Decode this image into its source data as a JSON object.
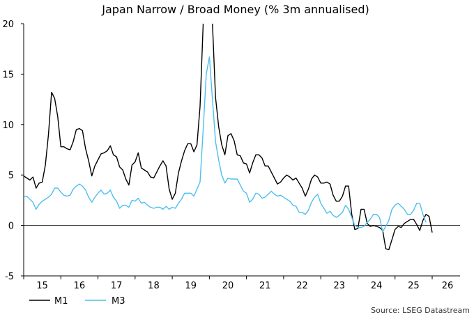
{
  "chart_data": {
    "type": "line",
    "title": "Japan Narrow / Broad Money (% 3m annualised)",
    "source": "Source: LSEG Datastream",
    "x_start": "2014-07",
    "frequency": "monthly",
    "ylim": [
      -5,
      20
    ],
    "yticks": [
      "-5",
      "0",
      "5",
      "10",
      "15",
      "20"
    ],
    "xticks": [
      "15",
      "16",
      "17",
      "18",
      "19",
      "20",
      "21",
      "22",
      "23",
      "24",
      "25",
      "26"
    ],
    "grid": false,
    "legend_position": "bottom-left",
    "series": [
      {
        "name": "M1",
        "color": "#000000",
        "values": [
          7.2,
          5.6,
          4.8,
          4.1,
          4.7,
          4.4,
          4.9,
          4.7,
          4.5,
          4.8,
          3.7,
          4.2,
          4.3,
          6.0,
          9.0,
          13.2,
          12.6,
          10.8,
          7.8,
          7.8,
          7.6,
          7.5,
          8.3,
          9.5,
          9.6,
          9.4,
          7.6,
          6.4,
          4.9,
          5.9,
          6.5,
          7.1,
          7.2,
          7.4,
          7.9,
          7.0,
          6.8,
          5.8,
          5.5,
          4.6,
          4.0,
          6.0,
          6.3,
          7.2,
          5.7,
          5.5,
          5.3,
          4.8,
          4.7,
          5.3,
          5.9,
          6.4,
          5.9,
          3.6,
          2.6,
          3.2,
          5.2,
          6.4,
          7.4,
          8.1,
          8.1,
          7.3,
          8.0,
          11.8,
          20.0,
          24.0,
          24.0,
          20.0,
          12.7,
          9.8,
          8.0,
          7.0,
          8.9,
          9.1,
          8.4,
          7.0,
          6.9,
          6.2,
          6.1,
          5.2,
          6.2,
          7.0,
          7.0,
          6.7,
          5.9,
          5.9,
          5.3,
          4.7,
          4.1,
          4.3,
          4.7,
          5.0,
          4.8,
          4.5,
          4.7,
          4.2,
          3.7,
          2.9,
          3.6,
          4.6,
          5.0,
          4.8,
          4.2,
          4.2,
          4.3,
          4.1,
          3.0,
          2.4,
          2.4,
          2.9,
          3.9,
          3.9,
          1.1,
          -0.4,
          -0.3,
          1.6,
          1.6,
          0.2,
          -0.1,
          0.0,
          -0.1,
          -0.2,
          -0.5,
          -2.3,
          -2.4,
          -1.4,
          -0.4,
          -0.1,
          -0.2,
          0.2,
          0.4,
          0.6,
          0.6,
          0.1,
          -0.5,
          0.5,
          1.1,
          0.9,
          -0.7
        ]
      },
      {
        "name": "M3",
        "color": "#4dbfef",
        "values": [
          4.2,
          3.0,
          2.7,
          2.5,
          2.9,
          2.5,
          2.8,
          2.9,
          2.6,
          2.3,
          1.6,
          2.1,
          2.4,
          2.6,
          2.8,
          3.1,
          3.7,
          3.7,
          3.3,
          3.0,
          2.9,
          3.0,
          3.6,
          3.9,
          4.1,
          3.9,
          3.5,
          2.8,
          2.3,
          2.8,
          3.2,
          3.5,
          3.1,
          3.2,
          3.5,
          2.8,
          2.4,
          1.7,
          2.0,
          2.0,
          1.8,
          2.5,
          2.4,
          2.7,
          2.2,
          2.3,
          2.0,
          1.8,
          1.7,
          1.8,
          1.8,
          1.6,
          1.9,
          1.6,
          1.8,
          1.7,
          2.2,
          2.6,
          3.2,
          3.2,
          3.2,
          2.9,
          3.6,
          4.3,
          9.5,
          15.0,
          16.7,
          12.5,
          8.3,
          6.5,
          5.0,
          4.2,
          4.7,
          4.6,
          4.6,
          4.6,
          4.0,
          3.4,
          3.2,
          2.3,
          2.6,
          3.2,
          3.1,
          2.7,
          2.8,
          3.1,
          3.4,
          3.1,
          2.9,
          3.0,
          2.8,
          2.6,
          2.4,
          2.0,
          1.9,
          1.3,
          1.3,
          1.1,
          1.5,
          2.3,
          2.8,
          3.1,
          2.2,
          1.7,
          1.2,
          1.4,
          1.0,
          0.8,
          1.0,
          1.3,
          2.0,
          1.6,
          0.8,
          0.0,
          -0.2,
          -0.2,
          -0.1,
          0.3,
          0.6,
          1.1,
          1.1,
          0.8,
          -0.6,
          -0.1,
          0.5,
          1.6,
          2.0,
          2.2,
          1.9,
          1.6,
          1.1,
          1.1,
          1.5,
          2.2,
          2.2,
          1.1,
          0.3
        ]
      }
    ]
  }
}
